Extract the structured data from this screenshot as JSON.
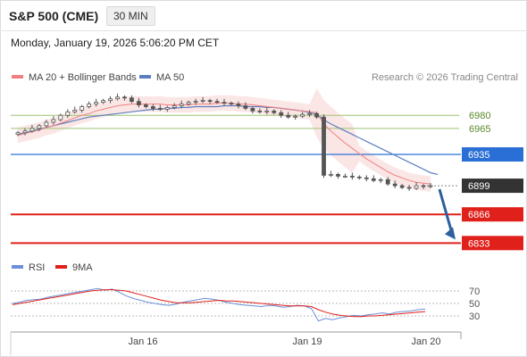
{
  "header": {
    "title": "S&P 500 (CME)",
    "timeframe": "30 MIN",
    "datetime": "Monday, January 19, 2026 5:06:20 PM CET"
  },
  "legend": {
    "ma20": "MA 20 + Bollinger Bands",
    "ma50": "MA 50",
    "credit": "Research © 2026 Trading Central",
    "rsi": "RSI",
    "rsi_ma": "9MA"
  },
  "colors": {
    "candle": "#555555",
    "ma20": "#f08080",
    "bollinger_fill": "#fbe3e3",
    "ma50": "#5b7fbf",
    "green_level": "#9cc472",
    "blue_level": "#2a6fd6",
    "red_level": "#e0201a",
    "dark_level": "#333333",
    "arrow": "#2e5f9e",
    "rsi": "#6b8fd8",
    "rsi_ma": "#e0201a"
  },
  "chart_data": [
    {
      "type": "candlestick",
      "title": "S&P 500 (CME)",
      "x_ticks": [
        "Jan 16",
        "Jan 19",
        "Jan 20"
      ],
      "ylim": [
        6820,
        7010
      ],
      "levels": [
        {
          "value": 6980,
          "label": "6980",
          "style": "green"
        },
        {
          "value": 6965,
          "label": "6965",
          "style": "green"
        },
        {
          "value": 6935,
          "label": "6935",
          "style": "blue"
        },
        {
          "value": 6899,
          "label": "6899",
          "style": "last-price"
        },
        {
          "value": 6866,
          "label": "6866",
          "style": "red"
        },
        {
          "value": 6833,
          "label": "6833",
          "style": "red"
        }
      ],
      "series": [
        {
          "name": "Close",
          "values": [
            6960,
            6962,
            6965,
            6968,
            6972,
            6975,
            6980,
            6984,
            6986,
            6990,
            6993,
            6995,
            6997,
            6999,
            7001,
            7000,
            6996,
            6992,
            6990,
            6988,
            6987,
            6989,
            6991,
            6993,
            6995,
            6996,
            6997,
            6996,
            6995,
            6994,
            6993,
            6991,
            6988,
            6985,
            6984,
            6985,
            6983,
            6980,
            6978,
            6979,
            6981,
            6982,
            6978,
            6911,
            6912,
            6910,
            6910,
            6909,
            6908,
            6907,
            6905,
            6906,
            6901,
            6899,
            6897,
            6896,
            6899,
            6898,
            6899
          ]
        },
        {
          "name": "MA 20",
          "values": [
            6957,
            6959,
            6961,
            6963,
            6966,
            6968,
            6971,
            6974,
            6977,
            6980,
            6982,
            6985,
            6987,
            6989,
            6991,
            6992,
            6993,
            6993,
            6993,
            6993,
            6993,
            6992,
            6992,
            6992,
            6992,
            6993,
            6993,
            6993,
            6994,
            6994,
            6994,
            6993,
            6993,
            6992,
            6991,
            6990,
            6989,
            6988,
            6987,
            6986,
            6985,
            6984,
            6983,
            6970,
            6962,
            6955,
            6948,
            6942,
            6936,
            6930,
            6925,
            6920,
            6915,
            6911,
            6908,
            6905,
            6903,
            6902,
            6901
          ]
        },
        {
          "name": "MA 50",
          "values": [
            6958,
            6960,
            6962,
            6964,
            6966,
            6968,
            6970,
            6972,
            6974,
            6976,
            6978,
            6979,
            6980,
            6981,
            6982,
            6983,
            6984,
            6985,
            6986,
            6987,
            6987,
            6988,
            6988,
            6989,
            6989,
            6990,
            6990,
            6990,
            6990,
            6991,
            6991,
            6991,
            6990,
            6990,
            6990,
            6989,
            6989,
            6988,
            6987,
            6986,
            6985,
            6983,
            6981,
            6975,
            6970,
            6966,
            6962,
            6958,
            6954,
            6950,
            6946,
            6942,
            6938,
            6934,
            6930,
            6926,
            6922,
            6918,
            6914
          ]
        }
      ],
      "projection_target": 6833
    },
    {
      "type": "line",
      "title": "RSI",
      "y_ticks": [
        70,
        50,
        30
      ],
      "ylim": [
        10,
        90
      ],
      "series": [
        {
          "name": "RSI",
          "values": [
            50,
            52,
            55,
            56,
            57,
            60,
            62,
            64,
            66,
            68,
            70,
            72,
            74,
            71,
            73,
            68,
            62,
            58,
            55,
            52,
            50,
            48,
            47,
            49,
            52,
            54,
            56,
            58,
            57,
            55,
            52,
            50,
            48,
            47,
            46,
            45,
            47,
            46,
            44,
            45,
            47,
            46,
            42,
            22,
            26,
            24,
            27,
            29,
            31,
            30,
            32,
            33,
            35,
            33,
            36,
            37,
            38,
            40,
            41
          ]
        },
        {
          "name": "9MA",
          "values": [
            48,
            50,
            52,
            54,
            56,
            58,
            60,
            62,
            64,
            66,
            68,
            70,
            71,
            72,
            72,
            71,
            70,
            67,
            64,
            61,
            58,
            55,
            53,
            51,
            51,
            51,
            52,
            53,
            54,
            55,
            54,
            54,
            53,
            52,
            51,
            50,
            49,
            48,
            47,
            46,
            46,
            46,
            45,
            40,
            36,
            33,
            31,
            30,
            29,
            29,
            30,
            30,
            31,
            32,
            33,
            34,
            35,
            36,
            37
          ]
        }
      ]
    }
  ]
}
